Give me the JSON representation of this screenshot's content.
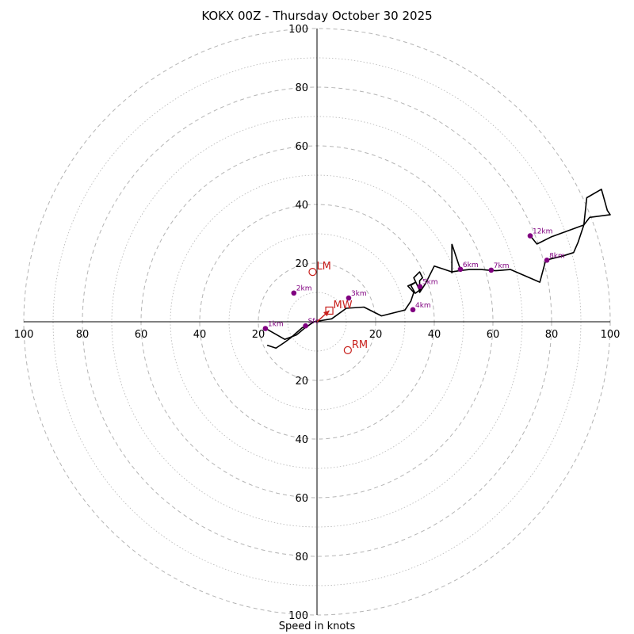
{
  "chart_data": {
    "type": "hodograph",
    "title": "KOKX 00Z - Thursday October 30 2025",
    "xlabel": "Speed in knots",
    "units": "knots",
    "range": [
      -100,
      100
    ],
    "ring_spacing": 10,
    "axis_ticks": [
      {
        "value": 100,
        "label": "100"
      },
      {
        "value": 80,
        "label": "80"
      },
      {
        "value": 60,
        "label": "60"
      },
      {
        "value": 40,
        "label": "40"
      },
      {
        "value": 20,
        "label": "20"
      }
    ],
    "trace": [
      [
        -18,
        -2
      ],
      [
        -11,
        -6
      ],
      [
        -7,
        -4.5
      ],
      [
        -4,
        -2
      ],
      [
        -1,
        0
      ],
      [
        5,
        1
      ],
      [
        10,
        4.6
      ],
      [
        16,
        5
      ],
      [
        22,
        2
      ],
      [
        30,
        4
      ],
      [
        32,
        7
      ],
      [
        33,
        10
      ],
      [
        31,
        12.2
      ],
      [
        33.5,
        13.4
      ],
      [
        32,
        12.4
      ],
      [
        33.5,
        9.7
      ],
      [
        35.3,
        11
      ],
      [
        35.2,
        10.3
      ],
      [
        33,
        15
      ],
      [
        35,
        17
      ],
      [
        36,
        15
      ],
      [
        35,
        14
      ],
      [
        35,
        10
      ],
      [
        37,
        13
      ],
      [
        40,
        19
      ],
      [
        43,
        18
      ],
      [
        46,
        17
      ],
      [
        49,
        17.5
      ],
      [
        52,
        17.8
      ],
      [
        56,
        17.8
      ],
      [
        59.5,
        17.5
      ],
      [
        61,
        17.4
      ],
      [
        66,
        17.8
      ],
      [
        76,
        13.5
      ],
      [
        78,
        21
      ],
      [
        84,
        22.5
      ],
      [
        87.5,
        23.6
      ],
      [
        89,
        27
      ],
      [
        91,
        33
      ],
      [
        93,
        35.6
      ],
      [
        100,
        36.5
      ],
      [
        99,
        38
      ],
      [
        97,
        45.2
      ],
      [
        92,
        42.3
      ],
      [
        91,
        33
      ],
      [
        80,
        29
      ],
      [
        76,
        27
      ],
      [
        75,
        26.5
      ],
      [
        73,
        29
      ]
    ],
    "spike": [
      [
        46,
        16.5
      ],
      [
        46,
        26.5
      ],
      [
        49,
        17.5
      ]
    ],
    "tail": [
      [
        -17,
        -8
      ],
      [
        -14,
        -9
      ],
      [
        -11,
        -7
      ],
      [
        -9,
        -5.5
      ],
      [
        -5,
        -2
      ],
      [
        -3,
        -1.5
      ]
    ],
    "height_markers": [
      {
        "label": "Sfc",
        "u": -3.9,
        "v": -1.4
      },
      {
        "label": "1km",
        "u": -17.6,
        "v": -2.3
      },
      {
        "label": "2km",
        "u": -7.9,
        "v": 9.8
      },
      {
        "label": "3km",
        "u": 10.8,
        "v": 8.1
      },
      {
        "label": "4km",
        "u": 32.7,
        "v": 4.1
      },
      {
        "label": "5km",
        "u": 35.1,
        "v": 12.0
      },
      {
        "label": "6km",
        "u": 48.9,
        "v": 17.9
      },
      {
        "label": "7km",
        "u": 59.4,
        "v": 17.6
      },
      {
        "label": "8km",
        "u": 78.4,
        "v": 21.0
      },
      {
        "label": "12km",
        "u": 72.7,
        "v": 29.3
      }
    ],
    "motion_vectors": [
      {
        "label": "LM",
        "u": -1.5,
        "v": 17,
        "marker": "circle"
      },
      {
        "label": "RM",
        "u": 10.5,
        "v": -9.7,
        "marker": "circle"
      },
      {
        "label": "MW",
        "u": 4.2,
        "v": 3.8,
        "marker": "square"
      }
    ],
    "storm_arrow": {
      "from": [
        0,
        0
      ],
      "to": [
        4.2,
        3.8
      ]
    }
  },
  "colors": {
    "trace": "#000000",
    "markers": "#800080",
    "motion": "#c8201c",
    "grid": "#b4b4b4"
  }
}
